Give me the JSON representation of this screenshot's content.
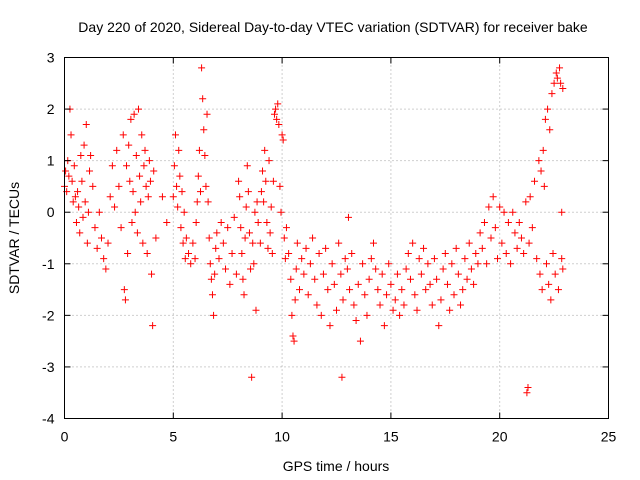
{
  "chart_data": {
    "type": "scatter",
    "title": "Day 220 of 2020, Sidereal Day-to-day VTEC variation (SDTVAR) for receiver bake",
    "xlabel": "GPS time / hours",
    "ylabel": "SDTVAR / TECUs",
    "xlim": [
      0,
      25
    ],
    "ylim": [
      -4,
      3
    ],
    "xticks": [
      0,
      5,
      10,
      15,
      20,
      25
    ],
    "xtick_labels": [
      "0",
      "5",
      "10",
      "15",
      "20",
      "25"
    ],
    "yticks": [
      -4,
      -3,
      -2,
      -1,
      0,
      1,
      2,
      3
    ],
    "ytick_labels": [
      "-4",
      "-3",
      "-2",
      "-1",
      "0",
      "1",
      "2",
      "3"
    ],
    "grid": true,
    "marker": "+",
    "color": "#ff0000",
    "series": [
      {
        "name": "SDTVAR",
        "points": [
          [
            0.0,
            0.5
          ],
          [
            0.05,
            0.8
          ],
          [
            0.1,
            0.4
          ],
          [
            0.15,
            1.0
          ],
          [
            0.2,
            0.7
          ],
          [
            0.25,
            2.0
          ],
          [
            0.3,
            1.5
          ],
          [
            0.35,
            0.6
          ],
          [
            0.4,
            0.2
          ],
          [
            0.45,
            0.9
          ],
          [
            0.5,
            0.3
          ],
          [
            0.55,
            -0.2
          ],
          [
            0.6,
            0.4
          ],
          [
            0.65,
            0.1
          ],
          [
            0.7,
            -0.4
          ],
          [
            0.75,
            1.1
          ],
          [
            0.8,
            0.6
          ],
          [
            0.85,
            -0.1
          ],
          [
            0.9,
            1.3
          ],
          [
            0.95,
            0.2
          ],
          [
            1.0,
            1.7
          ],
          [
            1.05,
            -0.6
          ],
          [
            1.1,
            0.0
          ],
          [
            1.15,
            0.8
          ],
          [
            1.2,
            1.1
          ],
          [
            1.3,
            0.5
          ],
          [
            1.4,
            -0.3
          ],
          [
            1.5,
            -0.7
          ],
          [
            1.6,
            0.0
          ],
          [
            1.7,
            -0.5
          ],
          [
            1.8,
            -0.9
          ],
          [
            1.9,
            -1.1
          ],
          [
            2.0,
            -0.6
          ],
          [
            2.1,
            0.3
          ],
          [
            2.2,
            0.9
          ],
          [
            2.3,
            0.1
          ],
          [
            2.4,
            1.2
          ],
          [
            2.5,
            0.5
          ],
          [
            2.6,
            -0.3
          ],
          [
            2.7,
            1.5
          ],
          [
            2.75,
            -1.5
          ],
          [
            2.8,
            -1.7
          ],
          [
            2.85,
            0.9
          ],
          [
            2.9,
            -0.8
          ],
          [
            2.95,
            1.3
          ],
          [
            3.0,
            0.6
          ],
          [
            3.05,
            1.8
          ],
          [
            3.1,
            -0.2
          ],
          [
            3.15,
            0.4
          ],
          [
            3.2,
            1.9
          ],
          [
            3.25,
            0.0
          ],
          [
            3.3,
            1.1
          ],
          [
            3.35,
            -0.4
          ],
          [
            3.4,
            2.0
          ],
          [
            3.45,
            0.7
          ],
          [
            3.5,
            0.2
          ],
          [
            3.55,
            1.5
          ],
          [
            3.6,
            -0.6
          ],
          [
            3.65,
            0.9
          ],
          [
            3.7,
            1.2
          ],
          [
            3.75,
            0.5
          ],
          [
            3.8,
            -0.8
          ],
          [
            3.85,
            0.3
          ],
          [
            3.9,
            1.0
          ],
          [
            3.95,
            0.6
          ],
          [
            4.0,
            -1.2
          ],
          [
            4.05,
            -2.2
          ],
          [
            4.1,
            0.8
          ],
          [
            4.2,
            -0.5
          ],
          [
            4.5,
            0.3
          ],
          [
            4.7,
            -0.2
          ],
          [
            5.0,
            0.3
          ],
          [
            5.05,
            0.9
          ],
          [
            5.1,
            1.5
          ],
          [
            5.15,
            0.5
          ],
          [
            5.2,
            0.1
          ],
          [
            5.25,
            1.2
          ],
          [
            5.3,
            0.7
          ],
          [
            5.35,
            -0.3
          ],
          [
            5.4,
            0.4
          ],
          [
            5.45,
            -0.6
          ],
          [
            5.5,
            0.0
          ],
          [
            5.55,
            -0.9
          ],
          [
            5.6,
            -0.5
          ],
          [
            5.7,
            -0.8
          ],
          [
            5.8,
            -1.0
          ],
          [
            5.9,
            -0.6
          ],
          [
            6.0,
            -0.9
          ],
          [
            6.05,
            -0.2
          ],
          [
            6.1,
            0.2
          ],
          [
            6.15,
            0.7
          ],
          [
            6.2,
            1.2
          ],
          [
            6.25,
            0.4
          ],
          [
            6.3,
            2.8
          ],
          [
            6.35,
            2.2
          ],
          [
            6.4,
            1.6
          ],
          [
            6.45,
            1.1
          ],
          [
            6.5,
            0.5
          ],
          [
            6.55,
            1.9
          ],
          [
            6.6,
            0.2
          ],
          [
            6.65,
            -0.5
          ],
          [
            6.7,
            -1.0
          ],
          [
            6.75,
            -1.3
          ],
          [
            6.8,
            -1.6
          ],
          [
            6.85,
            -2.0
          ],
          [
            6.9,
            -1.2
          ],
          [
            6.95,
            -0.7
          ],
          [
            7.0,
            -0.4
          ],
          [
            7.1,
            -0.9
          ],
          [
            7.2,
            -0.2
          ],
          [
            7.3,
            -0.6
          ],
          [
            7.4,
            -1.1
          ],
          [
            7.5,
            -0.3
          ],
          [
            7.6,
            -1.4
          ],
          [
            7.7,
            -0.8
          ],
          [
            7.8,
            -0.1
          ],
          [
            7.9,
            -1.2
          ],
          [
            8.0,
            0.6
          ],
          [
            8.05,
            0.3
          ],
          [
            8.1,
            -0.3
          ],
          [
            8.15,
            -0.8
          ],
          [
            8.2,
            -1.3
          ],
          [
            8.25,
            -1.6
          ],
          [
            8.3,
            -0.5
          ],
          [
            8.35,
            0.1
          ],
          [
            8.4,
            0.9
          ],
          [
            8.45,
            0.4
          ],
          [
            8.5,
            -0.4
          ],
          [
            8.55,
            -1.1
          ],
          [
            8.6,
            -3.2
          ],
          [
            8.65,
            -0.6
          ],
          [
            8.7,
            -1.0
          ],
          [
            8.75,
            0.0
          ],
          [
            8.8,
            -1.9
          ],
          [
            8.85,
            0.2
          ],
          [
            8.9,
            -0.2
          ],
          [
            9.0,
            -0.6
          ],
          [
            9.05,
            0.4
          ],
          [
            9.1,
            0.8
          ],
          [
            9.15,
            0.2
          ],
          [
            9.2,
            1.2
          ],
          [
            9.25,
            0.6
          ],
          [
            9.3,
            -0.2
          ],
          [
            9.35,
            -0.7
          ],
          [
            9.4,
            1.0
          ],
          [
            9.45,
            -0.4
          ],
          [
            9.5,
            0.1
          ],
          [
            9.55,
            -0.8
          ],
          [
            9.6,
            0.6
          ],
          [
            9.65,
            1.9
          ],
          [
            9.7,
            2.0
          ],
          [
            9.75,
            1.8
          ],
          [
            9.8,
            2.1
          ],
          [
            9.85,
            1.7
          ],
          [
            9.9,
            0.5
          ],
          [
            9.95,
            0.0
          ],
          [
            10.0,
            1.5
          ],
          [
            10.05,
            1.4
          ],
          [
            10.1,
            -0.5
          ],
          [
            10.15,
            -0.9
          ],
          [
            10.2,
            -0.3
          ],
          [
            10.3,
            -0.8
          ],
          [
            10.4,
            -1.3
          ],
          [
            10.45,
            -2.0
          ],
          [
            10.5,
            -2.4
          ],
          [
            10.55,
            -2.5
          ],
          [
            10.6,
            -1.7
          ],
          [
            10.65,
            -1.1
          ],
          [
            10.7,
            -0.6
          ],
          [
            10.8,
            -1.5
          ],
          [
            10.9,
            -0.9
          ],
          [
            11.0,
            -1.2
          ],
          [
            11.1,
            -0.7
          ],
          [
            11.2,
            -1.6
          ],
          [
            11.3,
            -1.0
          ],
          [
            11.4,
            -0.5
          ],
          [
            11.5,
            -1.3
          ],
          [
            11.6,
            -1.8
          ],
          [
            11.7,
            -0.8
          ],
          [
            11.8,
            -2.0
          ],
          [
            11.9,
            -1.2
          ],
          [
            12.0,
            -0.7
          ],
          [
            12.1,
            -1.5
          ],
          [
            12.2,
            -2.2
          ],
          [
            12.3,
            -1.0
          ],
          [
            12.4,
            -1.4
          ],
          [
            12.5,
            -1.9
          ],
          [
            12.6,
            -0.6
          ],
          [
            12.7,
            -1.2
          ],
          [
            12.75,
            -3.2
          ],
          [
            12.8,
            -1.7
          ],
          [
            12.9,
            -0.9
          ],
          [
            13.0,
            -1.1
          ],
          [
            13.05,
            -0.1
          ],
          [
            13.1,
            -1.5
          ],
          [
            13.2,
            -0.8
          ],
          [
            13.3,
            -1.8
          ],
          [
            13.4,
            -2.1
          ],
          [
            13.5,
            -1.4
          ],
          [
            13.6,
            -2.5
          ],
          [
            13.7,
            -1.0
          ],
          [
            13.8,
            -1.6
          ],
          [
            13.9,
            -2.0
          ],
          [
            14.0,
            -1.3
          ],
          [
            14.1,
            -0.9
          ],
          [
            14.2,
            -0.6
          ],
          [
            14.3,
            -1.1
          ],
          [
            14.4,
            -1.5
          ],
          [
            14.5,
            -1.8
          ],
          [
            14.6,
            -1.2
          ],
          [
            14.7,
            -2.2
          ],
          [
            14.8,
            -1.6
          ],
          [
            14.9,
            -1.0
          ],
          [
            15.0,
            -1.4
          ],
          [
            15.1,
            -1.9
          ],
          [
            15.2,
            -1.7
          ],
          [
            15.3,
            -1.2
          ],
          [
            15.4,
            -2.0
          ],
          [
            15.5,
            -1.5
          ],
          [
            15.6,
            -1.8
          ],
          [
            15.7,
            -1.1
          ],
          [
            15.8,
            -0.8
          ],
          [
            15.9,
            -1.3
          ],
          [
            16.0,
            -0.6
          ],
          [
            16.1,
            -1.6
          ],
          [
            16.2,
            -1.9
          ],
          [
            16.3,
            -0.9
          ],
          [
            16.4,
            -1.2
          ],
          [
            16.5,
            -0.7
          ],
          [
            16.6,
            -1.5
          ],
          [
            16.7,
            -1.0
          ],
          [
            16.8,
            -1.4
          ],
          [
            16.9,
            -1.8
          ],
          [
            17.0,
            -0.9
          ],
          [
            17.1,
            -1.3
          ],
          [
            17.2,
            -2.2
          ],
          [
            17.3,
            -1.7
          ],
          [
            17.4,
            -1.1
          ],
          [
            17.5,
            -0.8
          ],
          [
            17.6,
            -1.4
          ],
          [
            17.7,
            -1.9
          ],
          [
            17.8,
            -1.0
          ],
          [
            17.9,
            -1.6
          ],
          [
            18.0,
            -0.7
          ],
          [
            18.1,
            -1.2
          ],
          [
            18.2,
            -1.8
          ],
          [
            18.3,
            -1.5
          ],
          [
            18.4,
            -0.9
          ],
          [
            18.5,
            -1.3
          ],
          [
            18.6,
            -0.6
          ],
          [
            18.7,
            -1.1
          ],
          [
            18.8,
            -1.4
          ],
          [
            18.9,
            -0.8
          ],
          [
            19.0,
            -1.0
          ],
          [
            19.1,
            -0.4
          ],
          [
            19.2,
            -0.7
          ],
          [
            19.3,
            -0.2
          ],
          [
            19.4,
            -1.0
          ],
          [
            19.5,
            0.1
          ],
          [
            19.6,
            -0.5
          ],
          [
            19.7,
            0.3
          ],
          [
            19.8,
            -0.3
          ],
          [
            19.9,
            -0.9
          ],
          [
            20.0,
            0.1
          ],
          [
            20.1,
            -0.6
          ],
          [
            20.2,
            0.0
          ],
          [
            20.3,
            -0.8
          ],
          [
            20.4,
            -0.2
          ],
          [
            20.5,
            -1.0
          ],
          [
            20.6,
            0.0
          ],
          [
            20.7,
            -0.4
          ],
          [
            20.8,
            -0.7
          ],
          [
            20.9,
            -0.2
          ],
          [
            21.0,
            -0.5
          ],
          [
            21.1,
            -0.8
          ],
          [
            21.2,
            0.2
          ],
          [
            21.25,
            -3.5
          ],
          [
            21.3,
            -3.4
          ],
          [
            21.35,
            -0.6
          ],
          [
            21.4,
            0.3
          ],
          [
            21.5,
            -0.3
          ],
          [
            21.6,
            0.6
          ],
          [
            21.7,
            -0.9
          ],
          [
            21.8,
            1.0
          ],
          [
            21.85,
            -1.2
          ],
          [
            21.9,
            0.8
          ],
          [
            21.95,
            -1.5
          ],
          [
            22.0,
            1.2
          ],
          [
            22.05,
            0.5
          ],
          [
            22.1,
            1.8
          ],
          [
            22.15,
            -1.0
          ],
          [
            22.2,
            2.0
          ],
          [
            22.25,
            -1.4
          ],
          [
            22.3,
            1.6
          ],
          [
            22.35,
            -1.7
          ],
          [
            22.4,
            2.3
          ],
          [
            22.45,
            -0.8
          ],
          [
            22.5,
            2.5
          ],
          [
            22.55,
            -1.2
          ],
          [
            22.6,
            2.7
          ],
          [
            22.65,
            2.6
          ],
          [
            22.7,
            -1.5
          ],
          [
            22.75,
            2.8
          ],
          [
            22.8,
            2.5
          ],
          [
            22.85,
            -0.9
          ],
          [
            22.9,
            2.4
          ],
          [
            22.85,
            0.0
          ],
          [
            22.9,
            -1.1
          ]
        ]
      }
    ]
  }
}
